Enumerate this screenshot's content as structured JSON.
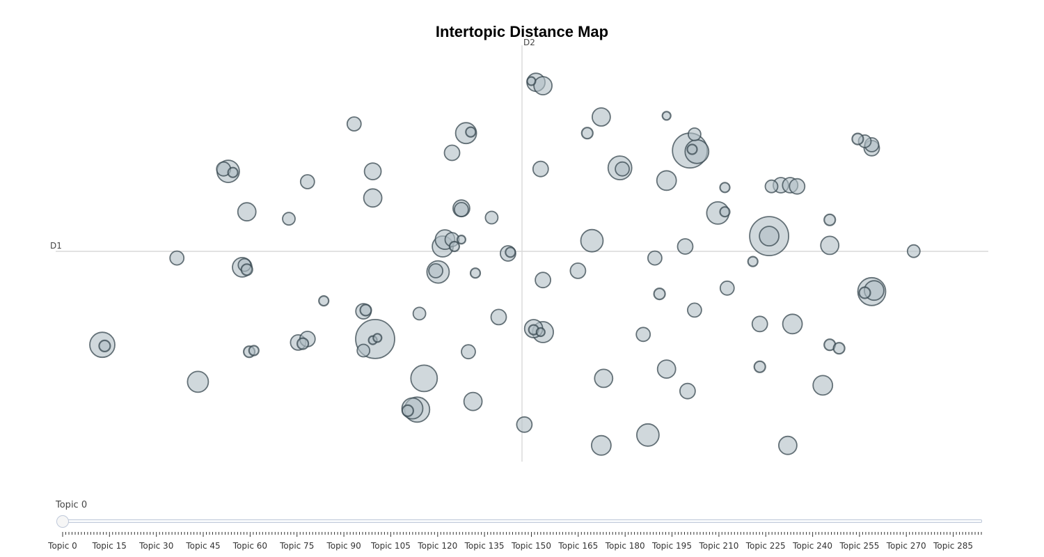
{
  "chart_data": {
    "type": "scatter",
    "title": "Intertopic Distance Map",
    "xlabel": "D1",
    "ylabel": "D2",
    "xlim": [
      -10,
      10
    ],
    "ylim": [
      -9,
      9
    ],
    "grid": false,
    "marker_fill": "#b0bec5",
    "marker_stroke": "#37474f",
    "points": [
      {
        "x": 0.3,
        "y": 7.4,
        "r": 13
      },
      {
        "x": 0.45,
        "y": 7.25,
        "r": 13
      },
      {
        "x": 0.2,
        "y": 7.45,
        "r": 6
      },
      {
        "x": 1.7,
        "y": 5.9,
        "r": 13
      },
      {
        "x": 3.1,
        "y": 5.95,
        "r": 6
      },
      {
        "x": -3.6,
        "y": 5.6,
        "r": 10
      },
      {
        "x": -1.2,
        "y": 5.2,
        "r": 15
      },
      {
        "x": -1.1,
        "y": 5.25,
        "r": 7
      },
      {
        "x": -1.5,
        "y": 4.35,
        "r": 11
      },
      {
        "x": 1.4,
        "y": 5.2,
        "r": 8
      },
      {
        "x": 3.7,
        "y": 5.15,
        "r": 9
      },
      {
        "x": 3.6,
        "y": 4.45,
        "r": 25
      },
      {
        "x": 3.75,
        "y": 4.4,
        "r": 17
      },
      {
        "x": 3.65,
        "y": 4.5,
        "r": 7
      },
      {
        "x": -6.3,
        "y": 3.55,
        "r": 16
      },
      {
        "x": -6.4,
        "y": 3.65,
        "r": 10
      },
      {
        "x": -6.2,
        "y": 3.5,
        "r": 7
      },
      {
        "x": -4.6,
        "y": 3.1,
        "r": 10
      },
      {
        "x": -3.2,
        "y": 3.55,
        "r": 12
      },
      {
        "x": 0.4,
        "y": 3.65,
        "r": 11
      },
      {
        "x": 2.1,
        "y": 3.7,
        "r": 17
      },
      {
        "x": 2.15,
        "y": 3.65,
        "r": 10
      },
      {
        "x": 3.1,
        "y": 3.15,
        "r": 14
      },
      {
        "x": -5.9,
        "y": 1.8,
        "r": 13
      },
      {
        "x": -5.0,
        "y": 1.5,
        "r": 9
      },
      {
        "x": -3.2,
        "y": 2.4,
        "r": 13
      },
      {
        "x": -1.3,
        "y": 1.9,
        "r": 10
      },
      {
        "x": -1.3,
        "y": 1.95,
        "r": 12
      },
      {
        "x": -0.65,
        "y": 1.55,
        "r": 9
      },
      {
        "x": 4.2,
        "y": 1.75,
        "r": 16
      },
      {
        "x": 4.35,
        "y": 1.8,
        "r": 7
      },
      {
        "x": 4.35,
        "y": 2.85,
        "r": 7
      },
      {
        "x": 5.35,
        "y": 2.9,
        "r": 9
      },
      {
        "x": 5.55,
        "y": 2.95,
        "r": 11
      },
      {
        "x": 5.75,
        "y": 2.95,
        "r": 11
      },
      {
        "x": 5.9,
        "y": 2.9,
        "r": 11
      },
      {
        "x": 7.2,
        "y": 4.95,
        "r": 8
      },
      {
        "x": 7.35,
        "y": 4.85,
        "r": 9
      },
      {
        "x": 7.5,
        "y": 4.7,
        "r": 10
      },
      {
        "x": 7.5,
        "y": 4.55,
        "r": 11
      },
      {
        "x": 6.6,
        "y": 1.45,
        "r": 8
      },
      {
        "x": 5.3,
        "y": 0.75,
        "r": 28
      },
      {
        "x": 5.3,
        "y": 0.75,
        "r": 14
      },
      {
        "x": 1.5,
        "y": 0.55,
        "r": 16
      },
      {
        "x": 3.5,
        "y": 0.3,
        "r": 11
      },
      {
        "x": 6.6,
        "y": 0.35,
        "r": 13
      },
      {
        "x": 8.4,
        "y": 0.1,
        "r": 9
      },
      {
        "x": -7.4,
        "y": -0.2,
        "r": 10
      },
      {
        "x": -1.7,
        "y": 0.3,
        "r": 15
      },
      {
        "x": -1.65,
        "y": 0.6,
        "r": 14
      },
      {
        "x": -1.5,
        "y": 0.6,
        "r": 10
      },
      {
        "x": -1.45,
        "y": 0.3,
        "r": 7
      },
      {
        "x": -1.3,
        "y": 0.6,
        "r": 6
      },
      {
        "x": -0.3,
        "y": 0.0,
        "r": 11
      },
      {
        "x": -0.25,
        "y": 0.05,
        "r": 7
      },
      {
        "x": -6.0,
        "y": -0.6,
        "r": 14
      },
      {
        "x": -5.95,
        "y": -0.5,
        "r": 9
      },
      {
        "x": -5.9,
        "y": -0.7,
        "r": 8
      },
      {
        "x": -1.8,
        "y": -0.8,
        "r": 16
      },
      {
        "x": -1.85,
        "y": -0.75,
        "r": 10
      },
      {
        "x": -1.0,
        "y": -0.85,
        "r": 7
      },
      {
        "x": 0.45,
        "y": -1.15,
        "r": 11
      },
      {
        "x": 1.2,
        "y": -0.75,
        "r": 11
      },
      {
        "x": 2.85,
        "y": -0.2,
        "r": 10
      },
      {
        "x": 4.95,
        "y": -0.35,
        "r": 7
      },
      {
        "x": 7.5,
        "y": -1.65,
        "r": 20
      },
      {
        "x": 7.55,
        "y": -1.6,
        "r": 14
      },
      {
        "x": 7.35,
        "y": -1.7,
        "r": 8
      },
      {
        "x": -4.25,
        "y": -2.05,
        "r": 7
      },
      {
        "x": -3.4,
        "y": -2.5,
        "r": 11
      },
      {
        "x": -3.35,
        "y": -2.45,
        "r": 8
      },
      {
        "x": -2.2,
        "y": -2.6,
        "r": 9
      },
      {
        "x": -0.5,
        "y": -2.75,
        "r": 11
      },
      {
        "x": 2.95,
        "y": -1.75,
        "r": 8
      },
      {
        "x": 3.7,
        "y": -2.45,
        "r": 10
      },
      {
        "x": 4.4,
        "y": -1.5,
        "r": 10
      },
      {
        "x": 0.25,
        "y": -3.25,
        "r": 13
      },
      {
        "x": 0.45,
        "y": -3.4,
        "r": 15
      },
      {
        "x": 0.25,
        "y": -3.3,
        "r": 7
      },
      {
        "x": 0.4,
        "y": -3.4,
        "r": 6
      },
      {
        "x": 5.1,
        "y": -3.05,
        "r": 11
      },
      {
        "x": 5.8,
        "y": -3.05,
        "r": 14
      },
      {
        "x": -9.0,
        "y": -3.95,
        "r": 18
      },
      {
        "x": -8.95,
        "y": -4.0,
        "r": 8
      },
      {
        "x": -4.8,
        "y": -3.85,
        "r": 11
      },
      {
        "x": -4.6,
        "y": -3.7,
        "r": 11
      },
      {
        "x": -4.7,
        "y": -3.9,
        "r": 8
      },
      {
        "x": -3.15,
        "y": -3.7,
        "r": 28
      },
      {
        "x": -3.2,
        "y": -3.75,
        "r": 6
      },
      {
        "x": -3.1,
        "y": -3.65,
        "r": 6
      },
      {
        "x": -5.85,
        "y": -4.25,
        "r": 8
      },
      {
        "x": -5.75,
        "y": -4.2,
        "r": 7
      },
      {
        "x": -3.4,
        "y": -4.2,
        "r": 9
      },
      {
        "x": -1.15,
        "y": -4.25,
        "r": 10
      },
      {
        "x": 2.6,
        "y": -3.5,
        "r": 10
      },
      {
        "x": 6.6,
        "y": -3.95,
        "r": 8
      },
      {
        "x": 6.8,
        "y": -4.1,
        "r": 8
      },
      {
        "x": 5.1,
        "y": -4.9,
        "r": 8
      },
      {
        "x": -6.95,
        "y": -5.55,
        "r": 15
      },
      {
        "x": -2.1,
        "y": -5.4,
        "r": 19
      },
      {
        "x": 1.75,
        "y": -5.4,
        "r": 13
      },
      {
        "x": 3.1,
        "y": -5.0,
        "r": 13
      },
      {
        "x": 3.55,
        "y": -5.95,
        "r": 11
      },
      {
        "x": 6.45,
        "y": -5.7,
        "r": 14
      },
      {
        "x": -2.35,
        "y": -6.7,
        "r": 15
      },
      {
        "x": -2.25,
        "y": -6.75,
        "r": 18
      },
      {
        "x": -2.45,
        "y": -6.8,
        "r": 8
      },
      {
        "x": -1.05,
        "y": -6.4,
        "r": 13
      },
      {
        "x": 0.05,
        "y": -7.4,
        "r": 11
      },
      {
        "x": 1.7,
        "y": -8.3,
        "r": 14
      },
      {
        "x": 2.7,
        "y": -7.85,
        "r": 16
      },
      {
        "x": 5.7,
        "y": -8.3,
        "r": 13
      }
    ]
  },
  "slider": {
    "current_label": "Topic 0",
    "min": 0,
    "max": 294,
    "value": 0,
    "tick_labels": [
      "Topic 0",
      "Topic 15",
      "Topic 30",
      "Topic 45",
      "Topic 60",
      "Topic 75",
      "Topic 90",
      "Topic 105",
      "Topic 120",
      "Topic 135",
      "Topic 150",
      "Topic 165",
      "Topic 180",
      "Topic 195",
      "Topic 210",
      "Topic 225",
      "Topic 240",
      "Topic 255",
      "Topic 270",
      "Topic 285"
    ]
  }
}
